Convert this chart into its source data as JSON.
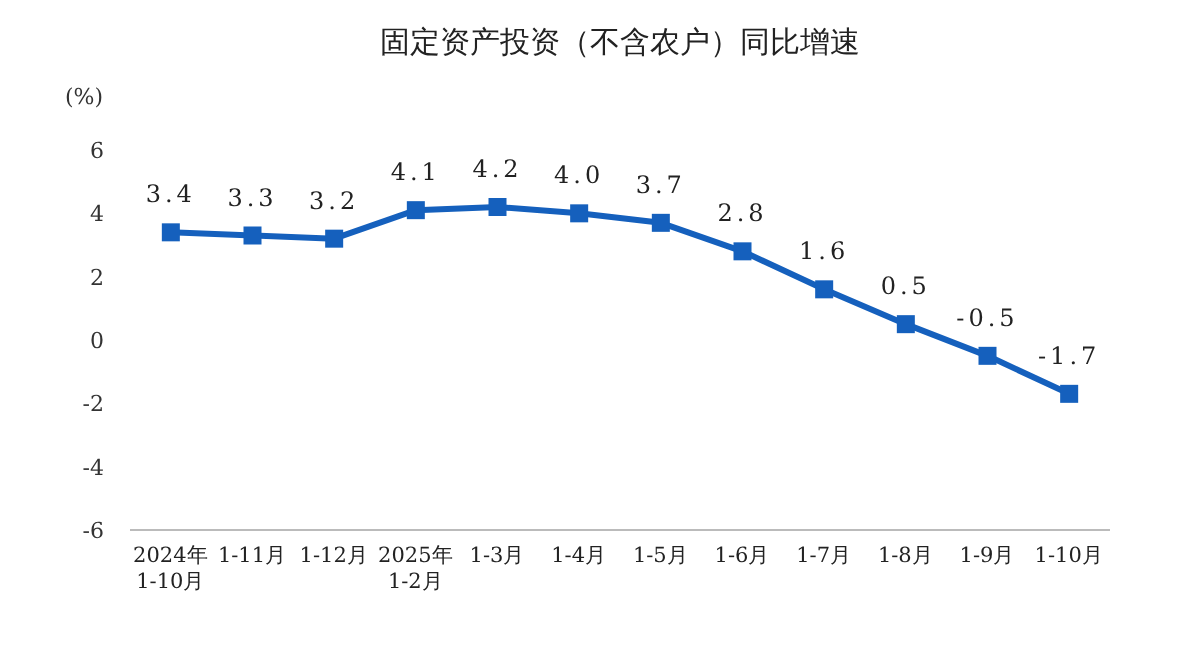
{
  "chart_data": {
    "type": "line",
    "title": "固定资产投资（不含农户）同比增速",
    "ylabel": "(%)",
    "categories": [
      "2024年\n1-10月",
      "1-11月",
      "1-12月",
      "2025年\n1-2月",
      "1-3月",
      "1-4月",
      "1-5月",
      "1-6月",
      "1-7月",
      "1-8月",
      "1-9月",
      "1-10月"
    ],
    "series": [
      {
        "color": "#1560bd",
        "values": [
          3.4,
          3.3,
          3.2,
          4.1,
          4.2,
          4.0,
          3.7,
          2.8,
          1.6,
          0.5,
          -0.5,
          -1.7
        ]
      }
    ],
    "value_labels": [
      "3.4",
      "3.3",
      "3.2",
      "4.1",
      "4.2",
      "4.0",
      "3.7",
      "2.8",
      "1.6",
      "0.5",
      "-0.5",
      "-1.7"
    ],
    "ylim": [
      -6,
      6
    ],
    "yticks": [
      -6,
      -4,
      -2,
      0,
      2,
      4,
      6
    ],
    "marker": "square",
    "grid": false
  }
}
